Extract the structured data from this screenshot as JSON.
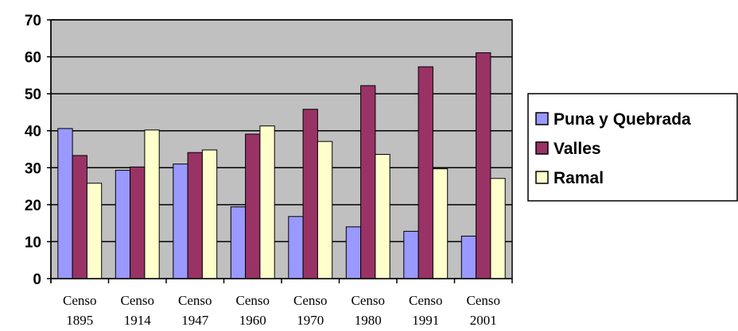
{
  "chart_data": {
    "type": "bar",
    "title": "",
    "xlabel": "",
    "ylabel": "",
    "ylim": [
      0,
      70
    ],
    "yticks": [
      0,
      10,
      20,
      30,
      40,
      50,
      60,
      70
    ],
    "grid": true,
    "legend_position": "right",
    "categories": [
      [
        "Censo",
        "1895"
      ],
      [
        "Censo",
        "1914"
      ],
      [
        "Censo",
        "1947"
      ],
      [
        "Censo",
        "1960"
      ],
      [
        "Censo",
        "1970"
      ],
      [
        "Censo",
        "1980"
      ],
      [
        "Censo",
        "1991"
      ],
      [
        "Censo",
        "2001"
      ]
    ],
    "series": [
      {
        "name": "Puna y Quebrada",
        "color": "#9999ff",
        "values": [
          40.6,
          29.3,
          31.0,
          19.4,
          16.8,
          14.0,
          12.8,
          11.5
        ]
      },
      {
        "name": "Valles",
        "color": "#993366",
        "values": [
          33.3,
          30.2,
          34.1,
          39.1,
          45.8,
          52.2,
          57.3,
          61.1
        ]
      },
      {
        "name": "Ramal",
        "color": "#ffffcc",
        "values": [
          25.8,
          40.2,
          34.8,
          41.3,
          37.1,
          33.6,
          29.7,
          27.1
        ]
      }
    ],
    "plot_background": "#c0c0c0"
  }
}
